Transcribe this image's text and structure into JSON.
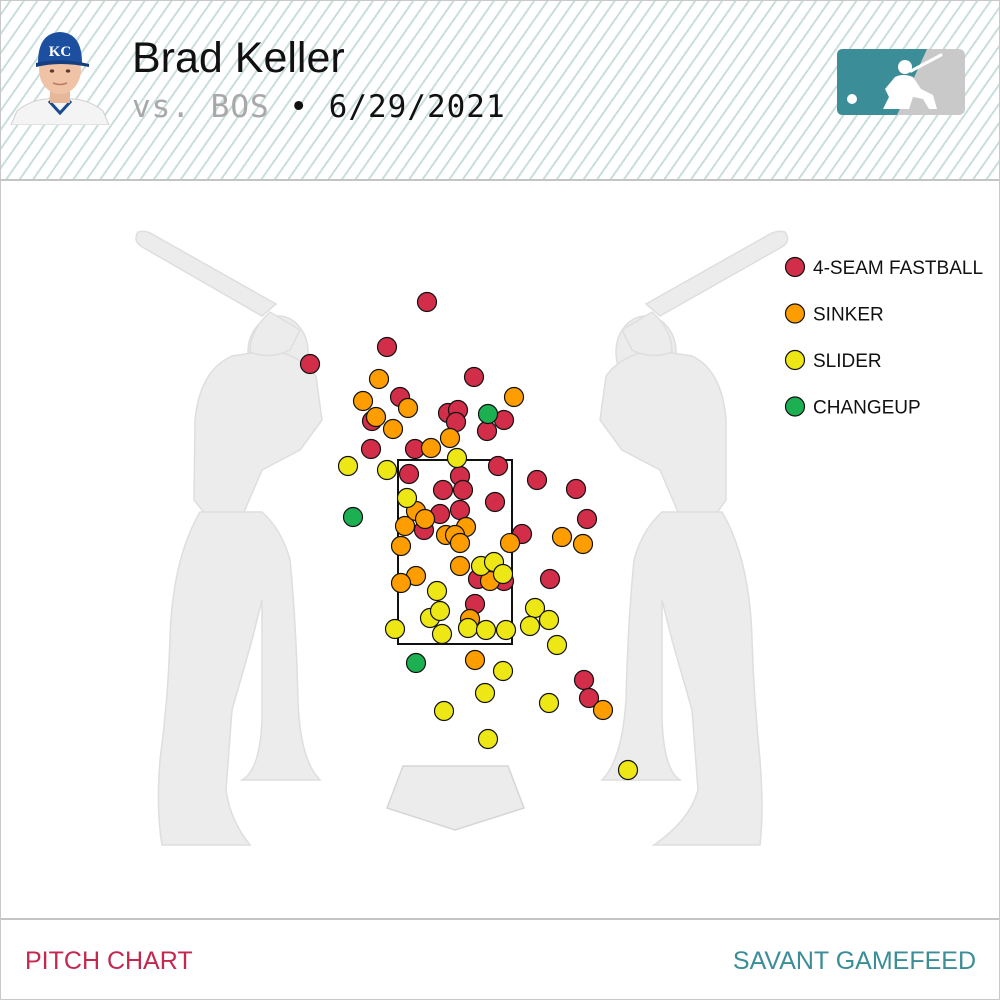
{
  "header": {
    "player_name": "Brad Keller",
    "opponent_prefix": "vs. BOS",
    "separator": " • ",
    "date": "6/29/2021",
    "team_cap_letters": "KC"
  },
  "footer": {
    "left_label": "PITCH CHART",
    "right_label": "SAVANT GAMEFEED"
  },
  "colors": {
    "brand_teal": "#3b8d97",
    "footer_red": "#c3294f",
    "silhouette": "#ececec",
    "strike_zone": "#111111"
  },
  "chart_data": {
    "type": "scatter",
    "description_axes": "catcher's view pitch location; x,y in chart plot units (0-1000)",
    "strike_zone": {
      "x": [
        398,
        512
      ],
      "y": [
        460,
        644
      ]
    },
    "legend_position": "top-right",
    "series": [
      {
        "name": "4-SEAM FASTBALL",
        "color": "#d22d49",
        "points": [
          [
            427,
            302
          ],
          [
            310,
            364
          ],
          [
            387,
            347
          ],
          [
            474,
            377
          ],
          [
            400,
            397
          ],
          [
            448,
            413
          ],
          [
            458,
            410
          ],
          [
            456,
            422
          ],
          [
            504,
            420
          ],
          [
            487,
            431
          ],
          [
            372,
            421
          ],
          [
            371,
            449
          ],
          [
            415,
            449
          ],
          [
            498,
            466
          ],
          [
            409,
            474
          ],
          [
            460,
            476
          ],
          [
            537,
            480
          ],
          [
            576,
            489
          ],
          [
            443,
            490
          ],
          [
            463,
            490
          ],
          [
            495,
            502
          ],
          [
            460,
            510
          ],
          [
            440,
            514
          ],
          [
            587,
            519
          ],
          [
            424,
            530
          ],
          [
            522,
            534
          ],
          [
            478,
            579
          ],
          [
            504,
            581
          ],
          [
            550,
            579
          ],
          [
            475,
            604
          ],
          [
            584,
            680
          ],
          [
            589,
            698
          ]
        ]
      },
      {
        "name": "SINKER",
        "color": "#fe9d00",
        "points": [
          [
            379,
            379
          ],
          [
            514,
            397
          ],
          [
            363,
            401
          ],
          [
            408,
            408
          ],
          [
            376,
            417
          ],
          [
            393,
            429
          ],
          [
            450,
            438
          ],
          [
            431,
            448
          ],
          [
            405,
            526
          ],
          [
            416,
            511
          ],
          [
            425,
            519
          ],
          [
            446,
            535
          ],
          [
            466,
            527
          ],
          [
            455,
            535
          ],
          [
            460,
            543
          ],
          [
            510,
            543
          ],
          [
            401,
            546
          ],
          [
            562,
            537
          ],
          [
            583,
            544
          ],
          [
            460,
            566
          ],
          [
            416,
            576
          ],
          [
            401,
            583
          ],
          [
            490,
            581
          ],
          [
            470,
            619
          ],
          [
            475,
            660
          ],
          [
            603,
            710
          ]
        ]
      },
      {
        "name": "SLIDER",
        "color": "#eee716",
        "points": [
          [
            348,
            466
          ],
          [
            387,
            470
          ],
          [
            457,
            458
          ],
          [
            407,
            498
          ],
          [
            481,
            566
          ],
          [
            494,
            562
          ],
          [
            503,
            574
          ],
          [
            437,
            591
          ],
          [
            430,
            618
          ],
          [
            440,
            611
          ],
          [
            535,
            608
          ],
          [
            549,
            620
          ],
          [
            395,
            629
          ],
          [
            442,
            634
          ],
          [
            468,
            628
          ],
          [
            486,
            630
          ],
          [
            506,
            630
          ],
          [
            530,
            626
          ],
          [
            557,
            645
          ],
          [
            503,
            671
          ],
          [
            485,
            693
          ],
          [
            444,
            711
          ],
          [
            549,
            703
          ],
          [
            488,
            739
          ],
          [
            628,
            770
          ]
        ]
      },
      {
        "name": "CHANGEUP",
        "color": "#1db053",
        "points": [
          [
            488,
            414
          ],
          [
            353,
            517
          ],
          [
            416,
            663
          ]
        ]
      }
    ]
  }
}
